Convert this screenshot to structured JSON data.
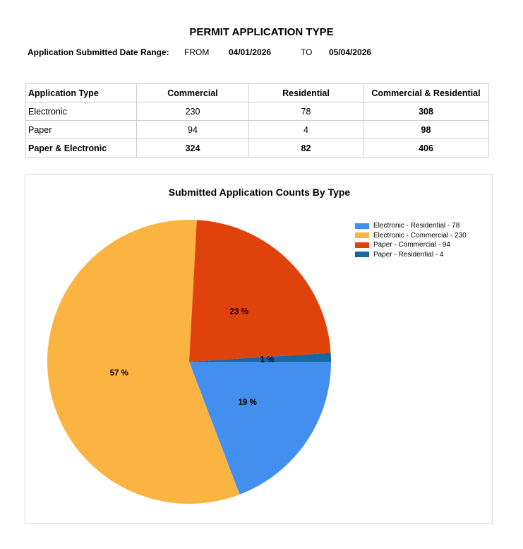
{
  "header": {
    "title": "PERMIT APPLICATION TYPE",
    "range_label": "Application Submitted Date Range:",
    "from_label": "FROM",
    "from_date": "04/01/2026",
    "to_label": "TO",
    "to_date": "05/04/2026"
  },
  "table": {
    "columns": [
      "Application Type",
      "Commercial",
      "Residential",
      "Commercial & Residential"
    ],
    "rows": [
      [
        "Electronic",
        "230",
        "78",
        "308"
      ],
      [
        "Paper",
        "94",
        "4",
        "98"
      ],
      [
        "Paper & Electronic",
        "324",
        "82",
        "406"
      ]
    ]
  },
  "chart_data": {
    "type": "pie",
    "title": "Submitted Application Counts By Type",
    "legend_position": "right",
    "slices": [
      {
        "label": "Electronic - Residential - 78",
        "value": 78,
        "pct_label": "19 %",
        "color": "#428ff0"
      },
      {
        "label": "Electronic - Commercial - 230",
        "value": 230,
        "pct_label": "57 %",
        "color": "#fbb441"
      },
      {
        "label": "Paper - Commercial - 94",
        "value": 94,
        "pct_label": "23 %",
        "color": "#e0420b"
      },
      {
        "label": "Paper - Residential - 4",
        "value": 4,
        "pct_label": "1 %",
        "color": "#1866a2"
      }
    ]
  }
}
